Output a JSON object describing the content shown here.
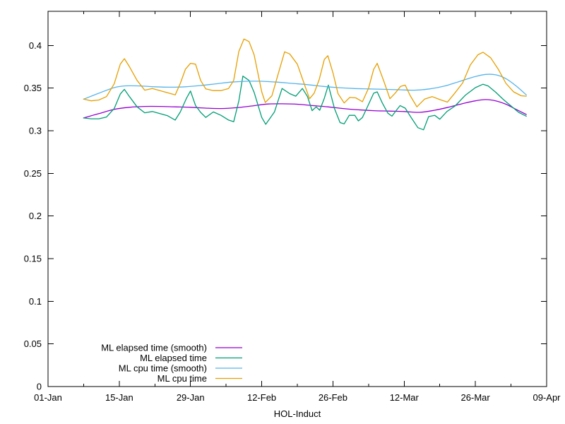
{
  "chart_data": {
    "type": "line",
    "title": "",
    "xlabel": "HOL-Induct",
    "ylabel": "",
    "grid": false,
    "x_axis": {
      "unit": "days since 01-Jan",
      "range_days": [
        0,
        98
      ],
      "major_ticks": [
        {
          "day": 0,
          "label": "01-Jan"
        },
        {
          "day": 14,
          "label": "15-Jan"
        },
        {
          "day": 28,
          "label": "29-Jan"
        },
        {
          "day": 42,
          "label": "12-Feb"
        },
        {
          "day": 56,
          "label": "26-Feb"
        },
        {
          "day": 70,
          "label": "12-Mar"
        },
        {
          "day": 84,
          "label": "26-Mar"
        },
        {
          "day": 98,
          "label": "09-Apr"
        }
      ],
      "minor_tick_days": [
        7,
        21,
        35,
        49,
        63,
        77,
        91
      ]
    },
    "y_axis": {
      "range": [
        0,
        0.44
      ],
      "ticks": [
        {
          "value": 0,
          "label": "0"
        },
        {
          "value": 0.05,
          "label": "0.05"
        },
        {
          "value": 0.1,
          "label": "0.1"
        },
        {
          "value": 0.15,
          "label": "0.15"
        },
        {
          "value": 0.2,
          "label": "0.2"
        },
        {
          "value": 0.25,
          "label": "0.25"
        },
        {
          "value": 0.3,
          "label": "0.3"
        },
        {
          "value": 0.35,
          "label": "0.35"
        },
        {
          "value": 0.4,
          "label": "0.4"
        }
      ]
    },
    "legend": {
      "position": "bottom-left-inside",
      "entries": [
        "ML elapsed time (smooth)",
        "ML elapsed time",
        "ML cpu time (smooth)",
        "ML cpu time"
      ]
    },
    "series": [
      {
        "name": "ML elapsed time (smooth)",
        "color": "#9400D3",
        "smooth": true,
        "x": [
          7,
          10,
          13,
          16,
          19,
          22,
          25,
          28,
          31,
          34,
          37,
          40,
          43,
          46,
          49,
          52,
          55,
          58,
          61,
          64,
          67,
          70,
          73,
          76,
          79,
          82,
          84,
          86,
          88,
          90,
          92,
          94
        ],
        "y": [
          0.315,
          0.32,
          0.325,
          0.3275,
          0.3285,
          0.3285,
          0.328,
          0.3275,
          0.3265,
          0.326,
          0.327,
          0.329,
          0.3312,
          0.3315,
          0.331,
          0.3295,
          0.328,
          0.326,
          0.3245,
          0.3235,
          0.323,
          0.3225,
          0.3215,
          0.324,
          0.328,
          0.3325,
          0.335,
          0.3365,
          0.335,
          0.331,
          0.325,
          0.319
        ]
      },
      {
        "name": "ML elapsed time",
        "color": "#009E73",
        "smooth": false,
        "x": [
          7,
          8.5,
          10,
          11.5,
          13,
          14.2,
          15,
          16,
          17.5,
          19,
          20.5,
          22,
          23.5,
          25,
          26,
          27.2,
          28,
          29,
          30,
          31,
          32.5,
          34,
          35.5,
          36.5,
          37.5,
          38.3,
          39.5,
          40.5,
          42,
          42.8,
          44.5,
          46,
          47.5,
          48.7,
          50,
          51,
          51.9,
          52.7,
          53.4,
          54.3,
          55.1,
          56.3,
          57.4,
          58.2,
          59.2,
          60.3,
          61,
          61.8,
          62.7,
          64,
          64.7,
          65.7,
          66.8,
          67.6,
          68.4,
          69.2,
          70.2,
          71.3,
          72.7,
          73.8,
          74.8,
          76,
          77,
          78.4,
          80,
          82,
          84,
          85.5,
          86.5,
          88,
          89.5,
          91,
          92.5,
          94
        ],
        "y": [
          0.315,
          0.314,
          0.314,
          0.316,
          0.326,
          0.343,
          0.3485,
          0.34,
          0.328,
          0.321,
          0.3225,
          0.32,
          0.3175,
          0.3125,
          0.322,
          0.338,
          0.3465,
          0.3295,
          0.3215,
          0.3155,
          0.322,
          0.318,
          0.3125,
          0.3105,
          0.335,
          0.364,
          0.359,
          0.345,
          0.3155,
          0.3075,
          0.322,
          0.3495,
          0.3435,
          0.3405,
          0.3495,
          0.34,
          0.3235,
          0.328,
          0.324,
          0.338,
          0.3535,
          0.326,
          0.3095,
          0.308,
          0.318,
          0.318,
          0.3115,
          0.3155,
          0.327,
          0.344,
          0.3455,
          0.3325,
          0.3205,
          0.317,
          0.3235,
          0.3295,
          0.3265,
          0.316,
          0.3035,
          0.301,
          0.3165,
          0.318,
          0.3135,
          0.3225,
          0.329,
          0.3415,
          0.3505,
          0.3545,
          0.3525,
          0.345,
          0.3365,
          0.329,
          0.3215,
          0.317
        ]
      },
      {
        "name": "ML cpu time (smooth)",
        "color": "#56B4E9",
        "smooth": true,
        "x": [
          7,
          10,
          13,
          15,
          18,
          21,
          24,
          27,
          30,
          33,
          36,
          39,
          42,
          45,
          48,
          51,
          54,
          57,
          60,
          63,
          66,
          69,
          72,
          75,
          78,
          81,
          84,
          86,
          88,
          90,
          92,
          94
        ],
        "y": [
          0.337,
          0.344,
          0.3505,
          0.3525,
          0.3525,
          0.3515,
          0.351,
          0.3515,
          0.353,
          0.355,
          0.357,
          0.358,
          0.358,
          0.357,
          0.3555,
          0.354,
          0.352,
          0.3505,
          0.3495,
          0.349,
          0.3485,
          0.348,
          0.3475,
          0.349,
          0.3525,
          0.358,
          0.3635,
          0.366,
          0.3655,
          0.361,
          0.3525,
          0.342
        ]
      },
      {
        "name": "ML cpu time",
        "color": "#E69F00",
        "smooth": false,
        "x": [
          7,
          8.5,
          10,
          11.5,
          13,
          14.2,
          15,
          16,
          17.5,
          19,
          20.5,
          22,
          23.5,
          25,
          26,
          27,
          28,
          29,
          30,
          31,
          32.5,
          34,
          35.5,
          36.5,
          37.5,
          38.5,
          39.5,
          40.5,
          42,
          42.7,
          44,
          45.5,
          46.5,
          47.5,
          49,
          50.5,
          51.4,
          52.3,
          53.3,
          54.3,
          55,
          56,
          57,
          58.2,
          59.3,
          60.5,
          61.8,
          63,
          64,
          64.7,
          66,
          67.2,
          68.3,
          69.3,
          70.2,
          71.2,
          72.5,
          74,
          75.5,
          77,
          78.5,
          80,
          81.5,
          83,
          84.5,
          85.5,
          87,
          88.5,
          90,
          91.5,
          93,
          94
        ],
        "y": [
          0.337,
          0.335,
          0.336,
          0.34,
          0.355,
          0.378,
          0.3845,
          0.375,
          0.359,
          0.3475,
          0.3495,
          0.347,
          0.3445,
          0.342,
          0.3555,
          0.372,
          0.379,
          0.378,
          0.359,
          0.349,
          0.347,
          0.347,
          0.3495,
          0.359,
          0.393,
          0.4075,
          0.4045,
          0.389,
          0.3455,
          0.333,
          0.341,
          0.372,
          0.3925,
          0.39,
          0.378,
          0.3525,
          0.3375,
          0.344,
          0.36,
          0.3835,
          0.388,
          0.368,
          0.3435,
          0.3325,
          0.339,
          0.3385,
          0.334,
          0.35,
          0.372,
          0.379,
          0.358,
          0.3375,
          0.3445,
          0.352,
          0.3535,
          0.341,
          0.328,
          0.337,
          0.34,
          0.3365,
          0.3335,
          0.3445,
          0.356,
          0.377,
          0.389,
          0.392,
          0.3855,
          0.372,
          0.3555,
          0.3455,
          0.341,
          0.3405
        ]
      }
    ]
  }
}
